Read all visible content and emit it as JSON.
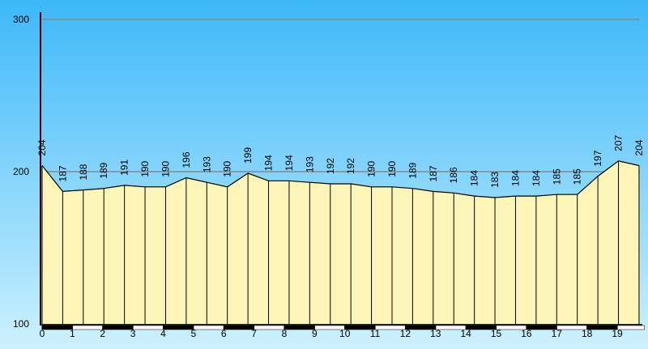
{
  "chart_data": {
    "type": "area",
    "x": [
      0,
      0.68,
      1.36,
      2.04,
      2.72,
      3.4,
      4.08,
      4.76,
      5.44,
      6.12,
      6.8,
      7.48,
      8.16,
      8.84,
      9.52,
      10.2,
      10.88,
      11.56,
      12.24,
      12.92,
      13.6,
      14.28,
      14.96,
      15.64,
      16.32,
      17.0,
      17.68,
      18.36,
      19.04,
      19.72
    ],
    "values": [
      204,
      187,
      188,
      189,
      191,
      190,
      190,
      196,
      193,
      190,
      199,
      194,
      194,
      193,
      192,
      192,
      190,
      190,
      189,
      187,
      186,
      184,
      183,
      184,
      184,
      185,
      185,
      197,
      207,
      204
    ],
    "color": "#fdf5b8",
    "xlim": [
      0,
      19.9
    ],
    "xticks": [
      0,
      1,
      2,
      3,
      4,
      5,
      6,
      7,
      8,
      9,
      10,
      11,
      12,
      13,
      14,
      15,
      16,
      17,
      18,
      19
    ],
    "ylim": [
      100,
      300
    ],
    "yticks": [
      100,
      200,
      300
    ],
    "grid": true
  }
}
